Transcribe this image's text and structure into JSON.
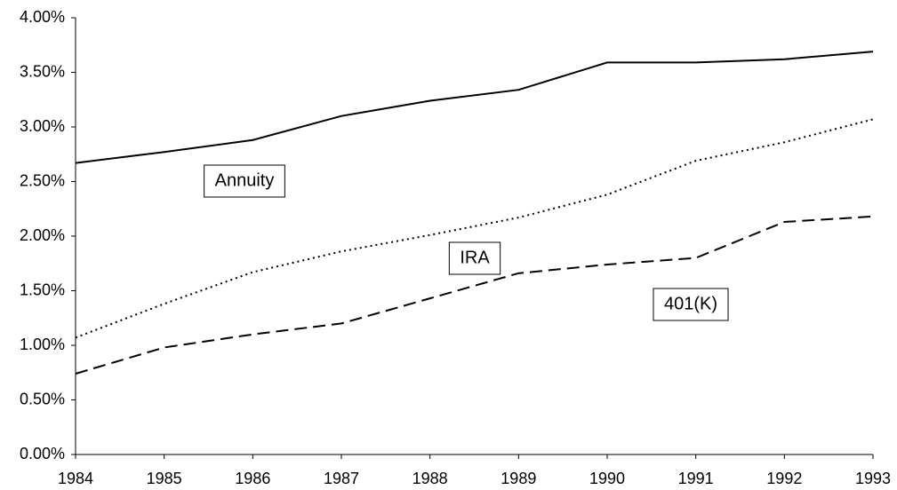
{
  "chart_data": {
    "type": "line",
    "x": [
      1984,
      1985,
      1986,
      1987,
      1988,
      1989,
      1990,
      1991,
      1992,
      1993
    ],
    "xlim": [
      1984,
      1993
    ],
    "xticks": [
      1984,
      1985,
      1986,
      1987,
      1988,
      1989,
      1990,
      1991,
      1992,
      1993
    ],
    "ylim": [
      0,
      4
    ],
    "yticks": [
      {
        "value": 0,
        "label": "0.00%"
      },
      {
        "value": 0.5,
        "label": "0.50%"
      },
      {
        "value": 1,
        "label": "1.00%"
      },
      {
        "value": 1.5,
        "label": "1.50%"
      },
      {
        "value": 2,
        "label": "2.00%"
      },
      {
        "value": 2.5,
        "label": "2.50%"
      },
      {
        "value": 3,
        "label": "3.00%"
      },
      {
        "value": 3.5,
        "label": "3.50%"
      },
      {
        "value": 4,
        "label": "4.00%"
      }
    ],
    "grid": false,
    "series": [
      {
        "name": "Annuity",
        "color": "#000000",
        "style": "solid",
        "values": [
          2.67,
          2.77,
          2.88,
          3.1,
          3.24,
          3.34,
          3.59,
          3.59,
          3.62,
          3.69
        ]
      },
      {
        "name": "IRA",
        "color": "#000000",
        "style": "dotted",
        "values": [
          1.07,
          1.38,
          1.67,
          1.86,
          2.01,
          2.17,
          2.38,
          2.69,
          2.86,
          3.07
        ]
      },
      {
        "name": "401(K)",
        "color": "#000000",
        "style": "dashed",
        "values": [
          0.74,
          0.98,
          1.1,
          1.2,
          1.43,
          1.66,
          1.74,
          1.8,
          2.13,
          2.18
        ]
      }
    ]
  }
}
